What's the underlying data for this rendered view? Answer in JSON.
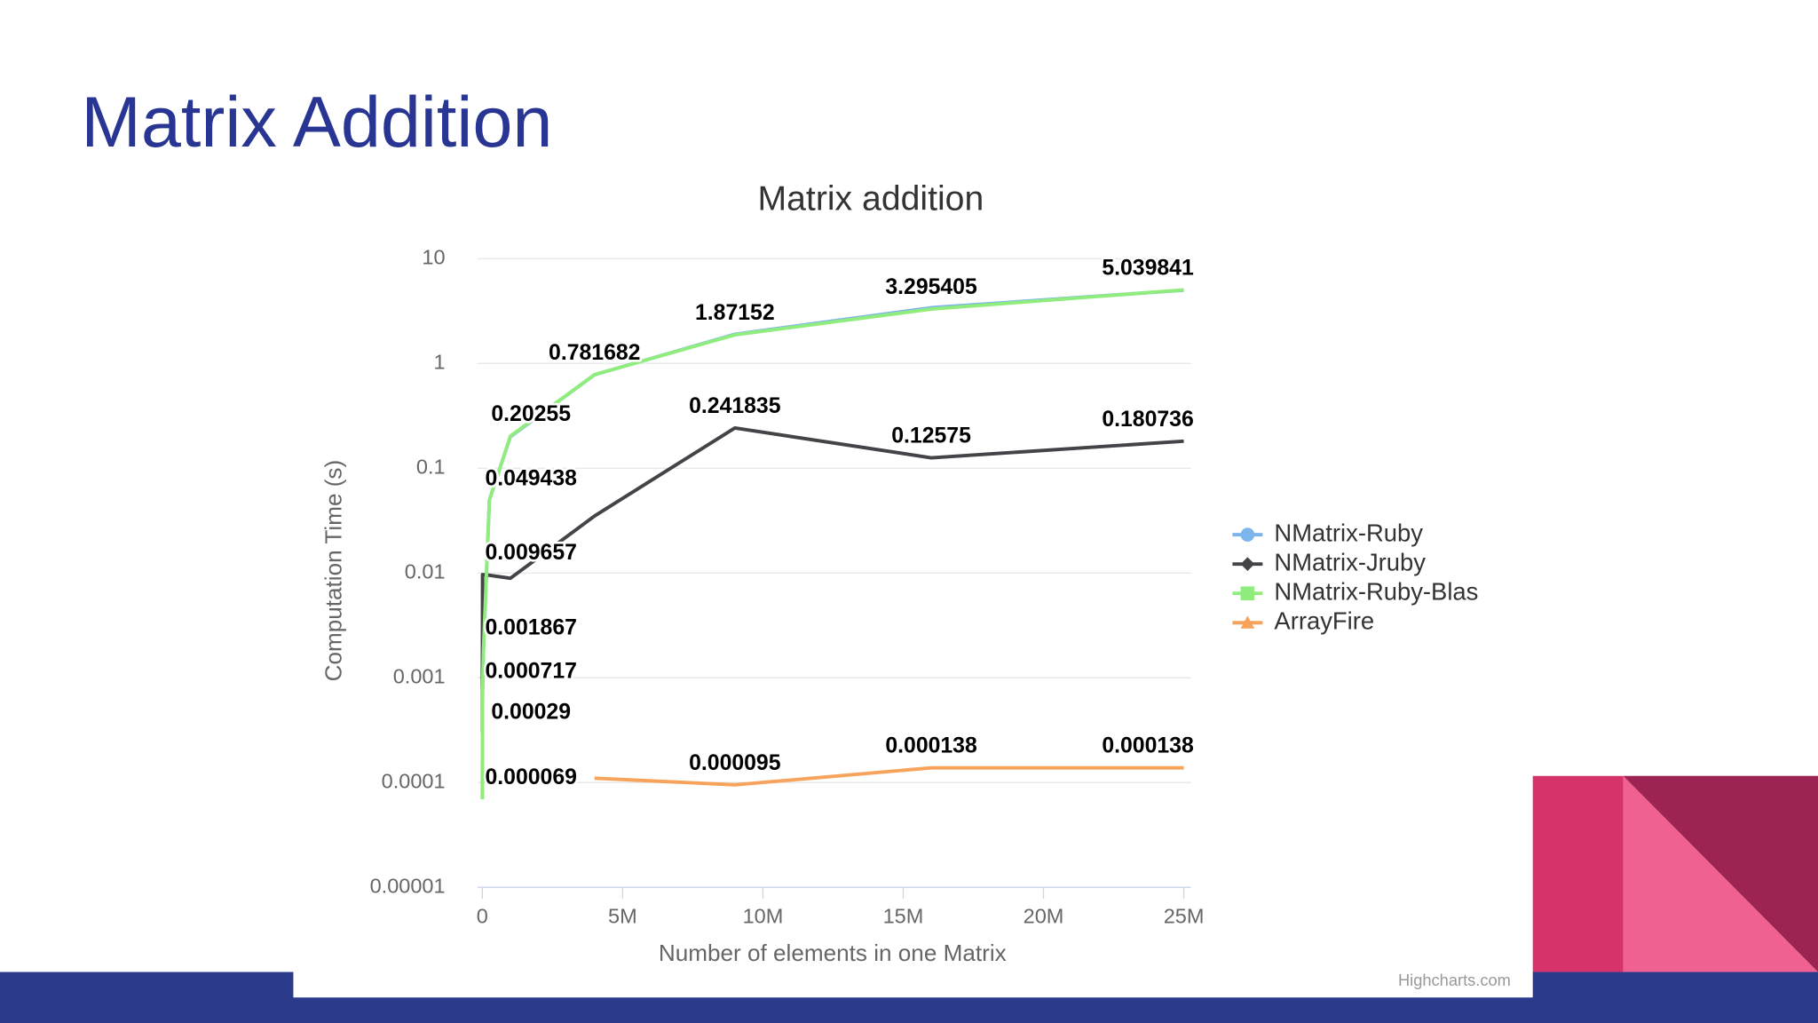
{
  "slide_title": "Matrix Addition",
  "chart_data": {
    "type": "line",
    "title": "Matrix addition",
    "xlabel": "Number of elements in one Matrix",
    "ylabel": "Computation Time (s)",
    "credits": "Highcharts.com",
    "yscale": "log",
    "ylim": [
      1e-05,
      10
    ],
    "yticks": [
      1e-05,
      0.0001,
      0.001,
      0.01,
      0.1,
      1,
      10
    ],
    "xlim": [
      0,
      25000000
    ],
    "xticks": [
      0,
      {
        "value": 5000000,
        "label": "5M"
      },
      {
        "value": 10000000,
        "label": "10M"
      },
      {
        "value": 15000000,
        "label": "15M"
      },
      {
        "value": 20000000,
        "label": "20M"
      },
      {
        "value": 25000000,
        "label": "25M"
      }
    ],
    "grid": true,
    "legend": "right",
    "series": [
      {
        "name": "NMatrix-Ruby",
        "color": "#7cb5ec",
        "marker": "circle",
        "x": [
          100,
          2500,
          10000,
          40000,
          250000,
          1000000,
          4000000,
          9000000,
          16000000,
          25000000
        ],
        "values": [
          7e-05,
          0.0003,
          0.00072,
          0.0019,
          0.05,
          0.2,
          0.78,
          1.9,
          3.4,
          5.0
        ]
      },
      {
        "name": "NMatrix-Jruby",
        "color": "#434348",
        "marker": "diamond",
        "x": [
          100,
          10000,
          250000,
          1000000,
          4000000,
          9000000,
          16000000,
          25000000
        ],
        "values": [
          0.0003,
          0.009657,
          0.0095,
          0.0089,
          0.035,
          0.241835,
          0.12575,
          0.180736
        ],
        "value_labels": [
          null,
          "0.009657",
          null,
          null,
          null,
          "0.241835",
          "0.12575",
          "0.180736"
        ]
      },
      {
        "name": "NMatrix-Ruby-Blas",
        "color": "#90ed7d",
        "marker": "square",
        "x": [
          100,
          2500,
          10000,
          40000,
          250000,
          1000000,
          4000000,
          9000000,
          16000000,
          25000000
        ],
        "values": [
          6.9e-05,
          0.00029,
          0.000717,
          0.001867,
          0.049438,
          0.20255,
          0.781682,
          1.87152,
          3.295405,
          5.039841
        ],
        "value_labels": [
          "0.000069",
          "0.00029",
          "0.000717",
          "0.001867",
          "0.049438",
          "0.20255",
          "0.781682",
          "1.87152",
          "3.295405",
          "5.039841"
        ]
      },
      {
        "name": "ArrayFire",
        "color": "#f7a35c",
        "marker": "triangle",
        "x": [
          4000000,
          9000000,
          16000000,
          25000000
        ],
        "values": [
          0.00011,
          9.5e-05,
          0.000138,
          0.000138
        ],
        "value_labels": [
          null,
          "0.000095",
          "0.000138",
          "0.000138"
        ]
      }
    ]
  }
}
